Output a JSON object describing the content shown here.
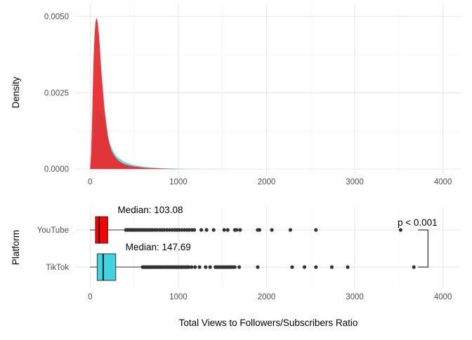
{
  "chart_data": [
    {
      "type": "area",
      "panel": "top",
      "ylabel": "Density",
      "xlim": [
        -170,
        4210
      ],
      "ylim": [
        -0.00018,
        0.0054
      ],
      "x_ticks": [
        0,
        1000,
        2000,
        3000,
        4000
      ],
      "x_tick_labels": [
        "0",
        "1000",
        "2000",
        "3000",
        "4000"
      ],
      "y_ticks": [
        0,
        0.0025,
        0.005
      ],
      "y_tick_labels": [
        "0.0000",
        "0.0025",
        "0.0050"
      ],
      "grid": true,
      "series": [
        {
          "platform": "TikTok",
          "color": "#5BD3E0",
          "x": [
            0,
            15,
            30,
            45,
            60,
            75,
            90,
            105,
            120,
            135,
            150,
            170,
            190,
            210,
            230,
            260,
            290,
            330,
            380,
            440,
            500,
            560,
            620,
            700,
            800,
            900,
            1000,
            1100,
            1200,
            1300,
            1400,
            1500,
            1600,
            1700,
            1800
          ],
          "y": [
            0,
            0.0002,
            0.0007,
            0.0013,
            0.0017,
            0.0019,
            0.00195,
            0.0019,
            0.00185,
            0.0018,
            0.00165,
            0.0014,
            0.0012,
            0.00095,
            0.0008,
            0.0006,
            0.00045,
            0.00035,
            0.00025,
            0.00018,
            0.00013,
            0.0001,
            7e-05,
            5e-05,
            3e-05,
            2e-05,
            1.5e-05,
            1e-05,
            8e-06,
            5e-06,
            4e-06,
            3e-06,
            2e-06,
            1e-06,
            0
          ]
        },
        {
          "platform": "YouTube",
          "color": "#E8262B",
          "x": [
            0,
            10,
            20,
            30,
            40,
            50,
            60,
            70,
            80,
            90,
            100,
            110,
            120,
            135,
            150,
            165,
            180,
            200,
            220,
            240,
            260,
            290,
            320,
            360,
            400,
            450,
            500,
            560,
            620,
            700,
            800,
            900,
            1000,
            1100
          ],
          "y": [
            0,
            0.0005,
            0.0014,
            0.0026,
            0.0037,
            0.0044,
            0.0048,
            0.00495,
            0.0049,
            0.0047,
            0.0044,
            0.004,
            0.0035,
            0.0029,
            0.0024,
            0.0019,
            0.00155,
            0.0011,
            0.00082,
            0.00062,
            0.0005,
            0.00037,
            0.00028,
            0.0002,
            0.00015,
            0.00011,
            8e-05,
            6e-05,
            4e-05,
            3e-05,
            2e-05,
            1e-05,
            5e-06,
            0
          ]
        }
      ]
    },
    {
      "type": "box",
      "panel": "bottom",
      "xlabel": "Total Views to Followers/Subscribers Ratio",
      "ylabel": "Platform",
      "xlim": [
        -170,
        4210
      ],
      "x_ticks": [
        0,
        1000,
        2000,
        3000,
        4000
      ],
      "x_tick_labels": [
        "0",
        "1000",
        "2000",
        "3000",
        "4000"
      ],
      "grid": true,
      "categories": [
        "YouTube",
        "TikTok"
      ],
      "boxes": [
        {
          "category": "YouTube",
          "color": "#FF0000",
          "whisker_low": 0,
          "q1": 60,
          "median": 103.08,
          "q3": 200,
          "whisker_high": 395,
          "median_label": "Median: 103.08",
          "outliers": [
            405,
            420,
            435,
            450,
            465,
            480,
            495,
            510,
            530,
            550,
            570,
            590,
            610,
            630,
            650,
            670,
            690,
            710,
            735,
            760,
            790,
            815,
            840,
            870,
            900,
            930,
            960,
            985,
            1010,
            1040,
            1070,
            1100,
            1125,
            1155,
            1180,
            1260,
            1320,
            1400,
            1520,
            1560,
            1640,
            1660,
            1700,
            1900,
            1920,
            2060,
            2270,
            2560,
            3520
          ]
        },
        {
          "category": "TikTok",
          "color": "#40D3E0",
          "whisker_low": 0,
          "q1": 80,
          "median": 147.69,
          "q3": 290,
          "whisker_high": 585,
          "median_label": "Median: 147.69",
          "outliers": [
            595,
            610,
            625,
            640,
            655,
            670,
            685,
            700,
            715,
            730,
            745,
            760,
            775,
            790,
            805,
            820,
            840,
            860,
            880,
            900,
            920,
            940,
            960,
            980,
            1000,
            1020,
            1040,
            1060,
            1080,
            1100,
            1120,
            1150,
            1190,
            1240,
            1310,
            1360,
            1420,
            1440,
            1460,
            1480,
            1500,
            1520,
            1540,
            1560,
            1580,
            1600,
            1620,
            1640,
            1690,
            1900,
            2290,
            2430,
            2560,
            2740,
            2920,
            3670
          ]
        }
      ],
      "annotation": {
        "text": "p < 0.001",
        "bracket_x": 3830
      }
    }
  ]
}
